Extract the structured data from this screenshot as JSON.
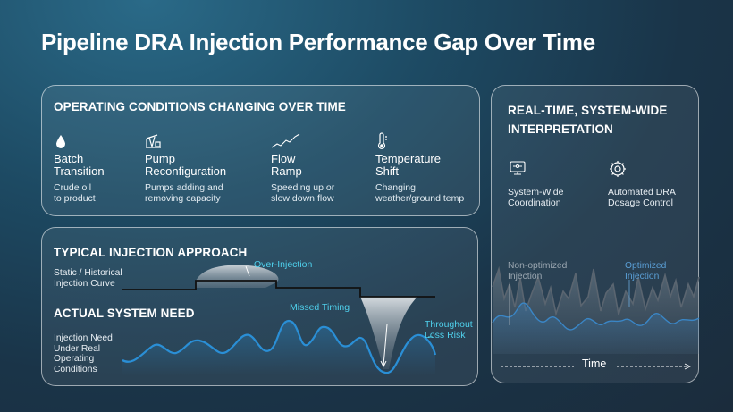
{
  "title": "Pipeline DRA Injection Performance Gap Over Time",
  "operating": {
    "title": "OPERATING CONDITIONS CHANGING OVER TIME",
    "items": [
      {
        "icon": "droplet-icon",
        "title_1": "Batch",
        "title_2": "Transition",
        "desc_1": "Crude oil",
        "desc_2": "to product"
      },
      {
        "icon": "pumpjack-icon",
        "title_1": "Pump",
        "title_2": "Reconfiguration",
        "desc_1": "Pumps adding and",
        "desc_2": "removing capacity"
      },
      {
        "icon": "trend-line-icon",
        "title_1": "Flow",
        "title_2": "Ramp",
        "desc_1": "Speeding up or",
        "desc_2": "slow down flow"
      },
      {
        "icon": "thermometer-icon",
        "title_1": "Temperature",
        "title_2": "Shift",
        "desc_1": "Changing",
        "desc_2": "weather/ground temp"
      }
    ]
  },
  "injection": {
    "typical_title": "TYPICAL INJECTION APPROACH",
    "static_label_1": "Static / Historical",
    "static_label_2": "Injection Curve",
    "over_injection": "Over-Injection",
    "actual_title": "ACTUAL SYSTEM NEED",
    "missed_timing": "Missed Timing",
    "throughout_1": "Throughout",
    "throughout_2": "Loss Risk",
    "need_label_1": "Injection Need",
    "need_label_2": "Under Real",
    "need_label_3": "Operating",
    "need_label_4": "Conditions"
  },
  "realtime": {
    "title_1": "REAL-TIME, SYSTEM-WIDE",
    "title_2": "INTERPRETATION",
    "items": [
      {
        "icon": "system-coordination-icon",
        "line_1": "System-Wide",
        "line_2": "Coordination"
      },
      {
        "icon": "gear-control-icon",
        "line_1": "Automated DRA",
        "line_2": "Dosage Control"
      }
    ],
    "non_optimized_1": "Non-optimized",
    "non_optimized_2": "Injection",
    "optimized_1": "Optimized",
    "optimized_2": "Injection",
    "time_label": "Time"
  },
  "colors": {
    "accent": "#4fd0ec",
    "wave": "#2a8fd6",
    "static_line": "#111111"
  }
}
